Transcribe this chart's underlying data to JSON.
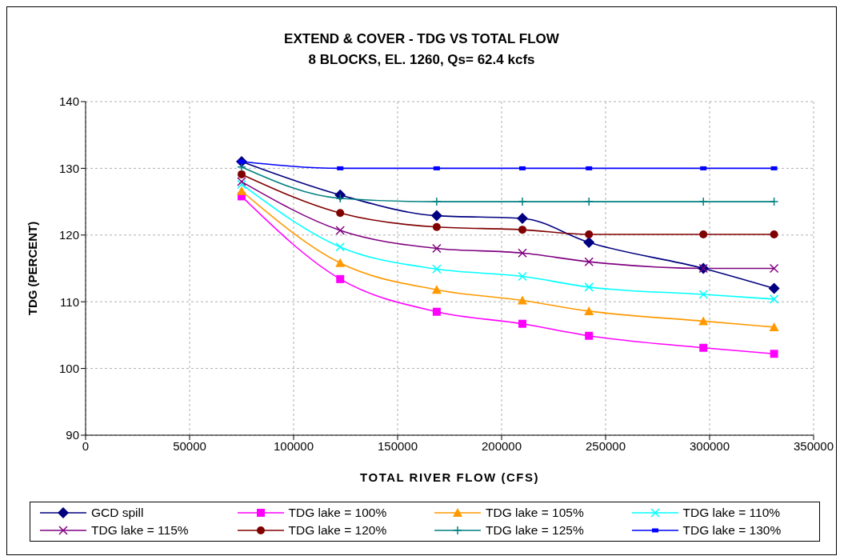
{
  "chart_data": {
    "type": "line",
    "title": "EXTEND & COVER - TDG VS TOTAL FLOW",
    "subtitle": "8 BLOCKS, EL. 1260, Qs= 62.4 kcfs",
    "xlabel": "TOTAL RIVER FLOW (CFS)",
    "ylabel": "TDG (PERCENT)",
    "x": [
      75000,
      122400,
      168800,
      210000,
      242000,
      297000,
      331000
    ],
    "xlim": [
      0,
      350000
    ],
    "xticks": [
      0,
      50000,
      100000,
      150000,
      200000,
      250000,
      300000,
      350000
    ],
    "ylim": [
      90,
      140
    ],
    "yticks": [
      90,
      100,
      110,
      120,
      130,
      140
    ],
    "grid": true,
    "legend": "bottom",
    "line_style": "solid",
    "series": [
      {
        "name": "GCD spill",
        "color": "#000080",
        "marker": "diamond",
        "values": [
          131,
          126,
          122.9,
          122.5,
          118.9,
          115,
          112
        ]
      },
      {
        "name": "TDG lake = 100%",
        "color": "#ff00ff",
        "marker": "square",
        "values": [
          125.8,
          113.4,
          108.5,
          106.7,
          104.9,
          103.1,
          102.2
        ]
      },
      {
        "name": "TDG lake = 105%",
        "color": "#ff9900",
        "marker": "triangle",
        "values": [
          126.6,
          115.8,
          111.8,
          110.2,
          108.6,
          107.1,
          106.2
        ]
      },
      {
        "name": "TDG lake = 110%",
        "color": "#00ffff",
        "marker": "cross",
        "values": [
          127.6,
          118.2,
          114.9,
          113.8,
          112.2,
          111.1,
          110.4
        ]
      },
      {
        "name": "TDG lake = 115%",
        "color": "#800080",
        "marker": "cross",
        "values": [
          128,
          120.7,
          118,
          117.3,
          116,
          115,
          115
        ]
      },
      {
        "name": "TDG lake = 120%",
        "color": "#800000",
        "marker": "circle",
        "values": [
          129.1,
          123.3,
          121.2,
          120.8,
          120.1,
          120.1,
          120.1
        ]
      },
      {
        "name": "TDG lake = 125%",
        "color": "#008080",
        "marker": "plus",
        "values": [
          130.2,
          125.5,
          125,
          125,
          125,
          125,
          125
        ]
      },
      {
        "name": "TDG lake = 130%",
        "color": "#0000ff",
        "marker": "square",
        "values": [
          131,
          130,
          130,
          130,
          130,
          130,
          130
        ]
      }
    ]
  }
}
